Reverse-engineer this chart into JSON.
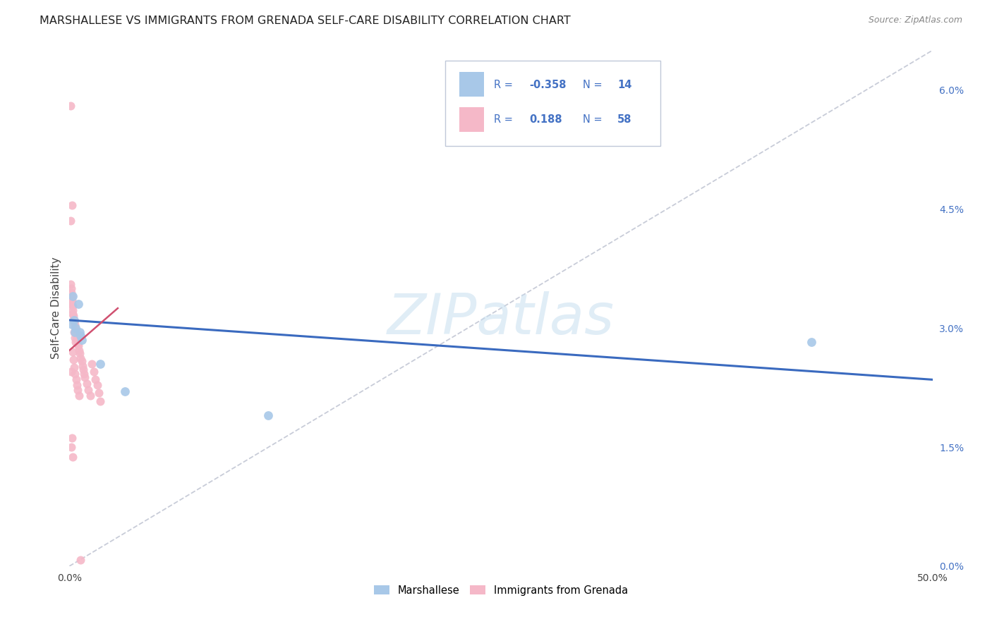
{
  "title": "MARSHALLESE VS IMMIGRANTS FROM GRENADA SELF-CARE DISABILITY CORRELATION CHART",
  "source": "Source: ZipAtlas.com",
  "ylabel_label": "Self-Care Disability",
  "right_ytick_vals": [
    0.0,
    1.5,
    3.0,
    4.5,
    6.0
  ],
  "right_ytick_labels": [
    "0.0%",
    "1.5%",
    "3.0%",
    "4.5%",
    "6.0%"
  ],
  "xlim": [
    0.0,
    50.0
  ],
  "ylim": [
    0.0,
    6.5
  ],
  "xtick_vals": [
    0.0,
    50.0
  ],
  "xtick_labels": [
    "0.0%",
    "50.0%"
  ],
  "legend_blue_R": "-0.358",
  "legend_blue_N": "14",
  "legend_pink_R": "0.188",
  "legend_pink_N": "58",
  "blue_color": "#a8c8e8",
  "pink_color": "#f5b8c8",
  "blue_line_color": "#3a6abf",
  "pink_line_color": "#d05070",
  "diagonal_color": "#c8ccd8",
  "background_color": "#ffffff",
  "watermark": "ZIPatlas",
  "blue_line_x0": 0.0,
  "blue_line_y0": 3.1,
  "blue_line_x1": 50.0,
  "blue_line_y1": 2.35,
  "pink_line_x0": 0.0,
  "pink_line_y0": 2.72,
  "pink_line_x1": 2.8,
  "pink_line_y1": 3.25,
  "blue_x": [
    0.15,
    0.2,
    0.25,
    0.3,
    0.35,
    0.5,
    0.6,
    0.65,
    0.7,
    1.8,
    3.2,
    11.5,
    43.0
  ],
  "blue_y": [
    3.05,
    3.4,
    3.1,
    2.95,
    3.0,
    3.3,
    2.95,
    2.9,
    2.85,
    2.55,
    2.2,
    1.9,
    2.82
  ],
  "pink_x": [
    0.05,
    0.08,
    0.08,
    0.1,
    0.1,
    0.12,
    0.13,
    0.15,
    0.15,
    0.18,
    0.2,
    0.2,
    0.22,
    0.25,
    0.25,
    0.28,
    0.3,
    0.3,
    0.32,
    0.35,
    0.35,
    0.38,
    0.4,
    0.42,
    0.45,
    0.48,
    0.5,
    0.55,
    0.6,
    0.65,
    0.7,
    0.75,
    0.8,
    0.85,
    0.9,
    1.0,
    1.1,
    1.2,
    1.3,
    1.4,
    1.5,
    1.6,
    1.7,
    1.8,
    0.08,
    0.15,
    0.2,
    0.1,
    0.12,
    0.18,
    0.22,
    0.28,
    0.32,
    0.38,
    0.42,
    0.48,
    0.55,
    0.65
  ],
  "pink_y": [
    5.8,
    3.55,
    3.35,
    3.5,
    3.3,
    3.45,
    3.4,
    3.35,
    4.55,
    3.28,
    3.22,
    3.18,
    3.15,
    3.1,
    2.95,
    3.08,
    3.05,
    2.88,
    3.02,
    2.98,
    2.82,
    2.95,
    2.92,
    2.88,
    2.85,
    2.8,
    2.78,
    2.72,
    2.68,
    2.62,
    2.58,
    2.52,
    2.48,
    2.42,
    2.38,
    2.3,
    2.22,
    2.15,
    2.55,
    2.45,
    2.35,
    2.28,
    2.18,
    2.08,
    4.35,
    1.62,
    1.38,
    1.5,
    2.45,
    2.7,
    2.6,
    2.5,
    2.42,
    2.35,
    2.28,
    2.22,
    2.15,
    0.08
  ]
}
